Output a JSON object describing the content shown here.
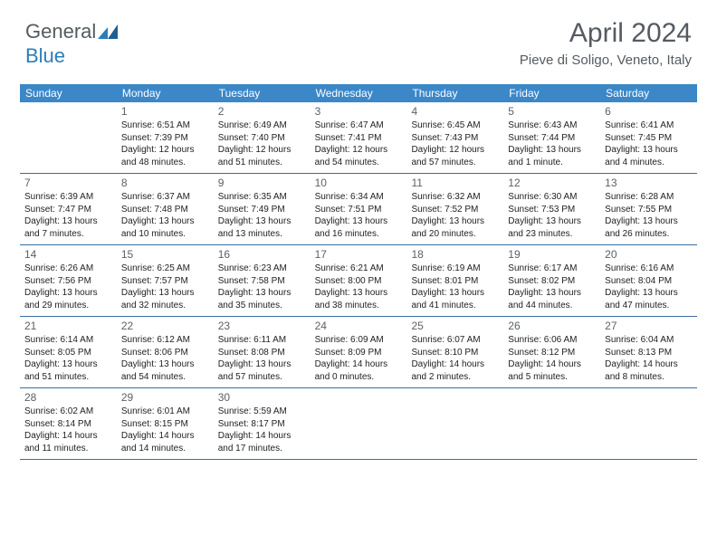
{
  "logo": {
    "text1": "General",
    "text2": "Blue"
  },
  "header": {
    "title": "April 2024",
    "location": "Pieve di Soligo, Veneto, Italy"
  },
  "style": {
    "header_bg": "#3b87c8",
    "header_text": "#ffffff",
    "border_color": "#3b6ea0",
    "logo_gray": "#555b60",
    "logo_blue": "#2a7fba",
    "title_color": "#555b60",
    "body_text": "#222222",
    "daynum_color": "#5a6268",
    "title_fontsize": 30,
    "loc_fontsize": 15,
    "dayhead_fontsize": 12,
    "cell_fontsize": 10
  },
  "day_headers": [
    "Sunday",
    "Monday",
    "Tuesday",
    "Wednesday",
    "Thursday",
    "Friday",
    "Saturday"
  ],
  "weeks": [
    [
      {
        "num": "",
        "lines": []
      },
      {
        "num": "1",
        "lines": [
          "Sunrise: 6:51 AM",
          "Sunset: 7:39 PM",
          "Daylight: 12 hours",
          "and 48 minutes."
        ]
      },
      {
        "num": "2",
        "lines": [
          "Sunrise: 6:49 AM",
          "Sunset: 7:40 PM",
          "Daylight: 12 hours",
          "and 51 minutes."
        ]
      },
      {
        "num": "3",
        "lines": [
          "Sunrise: 6:47 AM",
          "Sunset: 7:41 PM",
          "Daylight: 12 hours",
          "and 54 minutes."
        ]
      },
      {
        "num": "4",
        "lines": [
          "Sunrise: 6:45 AM",
          "Sunset: 7:43 PM",
          "Daylight: 12 hours",
          "and 57 minutes."
        ]
      },
      {
        "num": "5",
        "lines": [
          "Sunrise: 6:43 AM",
          "Sunset: 7:44 PM",
          "Daylight: 13 hours",
          "and 1 minute."
        ]
      },
      {
        "num": "6",
        "lines": [
          "Sunrise: 6:41 AM",
          "Sunset: 7:45 PM",
          "Daylight: 13 hours",
          "and 4 minutes."
        ]
      }
    ],
    [
      {
        "num": "7",
        "lines": [
          "Sunrise: 6:39 AM",
          "Sunset: 7:47 PM",
          "Daylight: 13 hours",
          "and 7 minutes."
        ]
      },
      {
        "num": "8",
        "lines": [
          "Sunrise: 6:37 AM",
          "Sunset: 7:48 PM",
          "Daylight: 13 hours",
          "and 10 minutes."
        ]
      },
      {
        "num": "9",
        "lines": [
          "Sunrise: 6:35 AM",
          "Sunset: 7:49 PM",
          "Daylight: 13 hours",
          "and 13 minutes."
        ]
      },
      {
        "num": "10",
        "lines": [
          "Sunrise: 6:34 AM",
          "Sunset: 7:51 PM",
          "Daylight: 13 hours",
          "and 16 minutes."
        ]
      },
      {
        "num": "11",
        "lines": [
          "Sunrise: 6:32 AM",
          "Sunset: 7:52 PM",
          "Daylight: 13 hours",
          "and 20 minutes."
        ]
      },
      {
        "num": "12",
        "lines": [
          "Sunrise: 6:30 AM",
          "Sunset: 7:53 PM",
          "Daylight: 13 hours",
          "and 23 minutes."
        ]
      },
      {
        "num": "13",
        "lines": [
          "Sunrise: 6:28 AM",
          "Sunset: 7:55 PM",
          "Daylight: 13 hours",
          "and 26 minutes."
        ]
      }
    ],
    [
      {
        "num": "14",
        "lines": [
          "Sunrise: 6:26 AM",
          "Sunset: 7:56 PM",
          "Daylight: 13 hours",
          "and 29 minutes."
        ]
      },
      {
        "num": "15",
        "lines": [
          "Sunrise: 6:25 AM",
          "Sunset: 7:57 PM",
          "Daylight: 13 hours",
          "and 32 minutes."
        ]
      },
      {
        "num": "16",
        "lines": [
          "Sunrise: 6:23 AM",
          "Sunset: 7:58 PM",
          "Daylight: 13 hours",
          "and 35 minutes."
        ]
      },
      {
        "num": "17",
        "lines": [
          "Sunrise: 6:21 AM",
          "Sunset: 8:00 PM",
          "Daylight: 13 hours",
          "and 38 minutes."
        ]
      },
      {
        "num": "18",
        "lines": [
          "Sunrise: 6:19 AM",
          "Sunset: 8:01 PM",
          "Daylight: 13 hours",
          "and 41 minutes."
        ]
      },
      {
        "num": "19",
        "lines": [
          "Sunrise: 6:17 AM",
          "Sunset: 8:02 PM",
          "Daylight: 13 hours",
          "and 44 minutes."
        ]
      },
      {
        "num": "20",
        "lines": [
          "Sunrise: 6:16 AM",
          "Sunset: 8:04 PM",
          "Daylight: 13 hours",
          "and 47 minutes."
        ]
      }
    ],
    [
      {
        "num": "21",
        "lines": [
          "Sunrise: 6:14 AM",
          "Sunset: 8:05 PM",
          "Daylight: 13 hours",
          "and 51 minutes."
        ]
      },
      {
        "num": "22",
        "lines": [
          "Sunrise: 6:12 AM",
          "Sunset: 8:06 PM",
          "Daylight: 13 hours",
          "and 54 minutes."
        ]
      },
      {
        "num": "23",
        "lines": [
          "Sunrise: 6:11 AM",
          "Sunset: 8:08 PM",
          "Daylight: 13 hours",
          "and 57 minutes."
        ]
      },
      {
        "num": "24",
        "lines": [
          "Sunrise: 6:09 AM",
          "Sunset: 8:09 PM",
          "Daylight: 14 hours",
          "and 0 minutes."
        ]
      },
      {
        "num": "25",
        "lines": [
          "Sunrise: 6:07 AM",
          "Sunset: 8:10 PM",
          "Daylight: 14 hours",
          "and 2 minutes."
        ]
      },
      {
        "num": "26",
        "lines": [
          "Sunrise: 6:06 AM",
          "Sunset: 8:12 PM",
          "Daylight: 14 hours",
          "and 5 minutes."
        ]
      },
      {
        "num": "27",
        "lines": [
          "Sunrise: 6:04 AM",
          "Sunset: 8:13 PM",
          "Daylight: 14 hours",
          "and 8 minutes."
        ]
      }
    ],
    [
      {
        "num": "28",
        "lines": [
          "Sunrise: 6:02 AM",
          "Sunset: 8:14 PM",
          "Daylight: 14 hours",
          "and 11 minutes."
        ]
      },
      {
        "num": "29",
        "lines": [
          "Sunrise: 6:01 AM",
          "Sunset: 8:15 PM",
          "Daylight: 14 hours",
          "and 14 minutes."
        ]
      },
      {
        "num": "30",
        "lines": [
          "Sunrise: 5:59 AM",
          "Sunset: 8:17 PM",
          "Daylight: 14 hours",
          "and 17 minutes."
        ]
      },
      {
        "num": "",
        "lines": []
      },
      {
        "num": "",
        "lines": []
      },
      {
        "num": "",
        "lines": []
      },
      {
        "num": "",
        "lines": []
      }
    ]
  ]
}
